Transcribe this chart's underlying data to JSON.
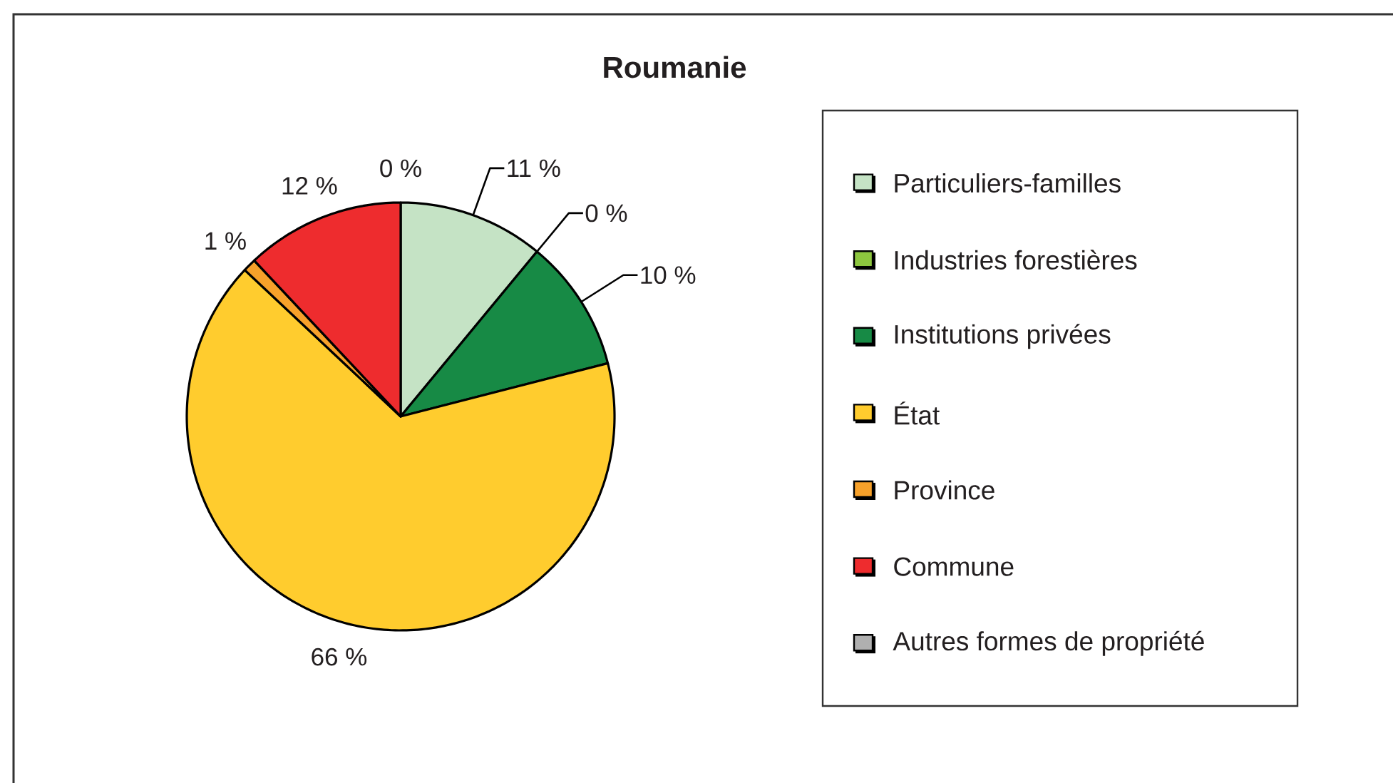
{
  "chart_data": {
    "type": "pie",
    "title": "Roumanie",
    "categories": [
      "Particuliers-familles",
      "Industries forestières",
      "Institutions privées",
      "État",
      "Province",
      "Commune",
      "Autres formes de propriété"
    ],
    "values": [
      11,
      0,
      10,
      66,
      1,
      12,
      0
    ],
    "colors": [
      "#c5e3c5",
      "#8dc63f",
      "#178a45",
      "#ffcc2e",
      "#f7a12a",
      "#ee2c2e",
      "#b0b0b0"
    ],
    "value_labels": [
      "11 %",
      "0 %",
      "10 %",
      "66 %",
      "1 %",
      "12 %",
      "0 %"
    ],
    "legend": "right"
  }
}
